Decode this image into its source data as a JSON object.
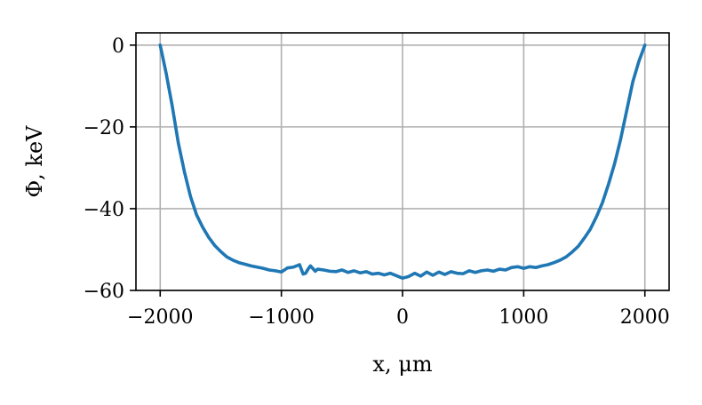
{
  "chart_data": {
    "type": "line",
    "xlabel": "x, μm",
    "ylabel": "Φ, keV",
    "xlim": [
      -2200,
      2200
    ],
    "ylim": [
      -60,
      3
    ],
    "xticks": [
      -2000,
      -1000,
      0,
      1000,
      2000
    ],
    "xtick_labels": [
      "−2000",
      "−1000",
      "0",
      "1000",
      "2000"
    ],
    "yticks": [
      0,
      -20,
      -40,
      -60
    ],
    "ytick_labels": [
      "0",
      "−20",
      "−40",
      "−60"
    ],
    "grid": true,
    "series": [
      {
        "color": "#1f77b4",
        "x": [
          -2000,
          -1950,
          -1900,
          -1850,
          -1800,
          -1750,
          -1700,
          -1650,
          -1600,
          -1550,
          -1500,
          -1450,
          -1400,
          -1350,
          -1300,
          -1250,
          -1200,
          -1150,
          -1100,
          -1050,
          -1000,
          -950,
          -900,
          -850,
          -820,
          -800,
          -780,
          -760,
          -720,
          -700,
          -650,
          -600,
          -550,
          -500,
          -450,
          -400,
          -350,
          -300,
          -250,
          -200,
          -150,
          -100,
          -50,
          0,
          50,
          100,
          150,
          200,
          250,
          300,
          350,
          400,
          450,
          500,
          550,
          600,
          650,
          700,
          750,
          800,
          850,
          900,
          950,
          1000,
          1050,
          1100,
          1150,
          1200,
          1250,
          1300,
          1350,
          1400,
          1450,
          1500,
          1550,
          1600,
          1650,
          1700,
          1750,
          1800,
          1850,
          1900,
          1950,
          2000
        ],
        "y": [
          0,
          -7,
          -15,
          -24,
          -31,
          -37,
          -41.5,
          -44.5,
          -47,
          -49,
          -50.5,
          -51.8,
          -52.6,
          -53.2,
          -53.6,
          -54,
          -54.3,
          -54.6,
          -55,
          -55.2,
          -55.5,
          -54.5,
          -54.3,
          -53.7,
          -56,
          -55.8,
          -54.8,
          -54,
          -55.3,
          -54.8,
          -55,
          -55.3,
          -55.4,
          -55,
          -55.6,
          -55.2,
          -55.7,
          -55.4,
          -56,
          -55.8,
          -56.2,
          -55.8,
          -56.4,
          -57,
          -56.6,
          -55.8,
          -56.5,
          -55.5,
          -56.3,
          -55.5,
          -56.1,
          -55.4,
          -55.8,
          -55.9,
          -55.2,
          -55.6,
          -55.2,
          -55,
          -55.3,
          -54.8,
          -55,
          -54.4,
          -54.2,
          -54.6,
          -54.2,
          -54.4,
          -54,
          -53.7,
          -53.2,
          -52.6,
          -51.8,
          -50.6,
          -49.2,
          -47.2,
          -45,
          -42,
          -38.5,
          -34,
          -29,
          -23,
          -16,
          -9,
          -4,
          0
        ]
      }
    ]
  }
}
